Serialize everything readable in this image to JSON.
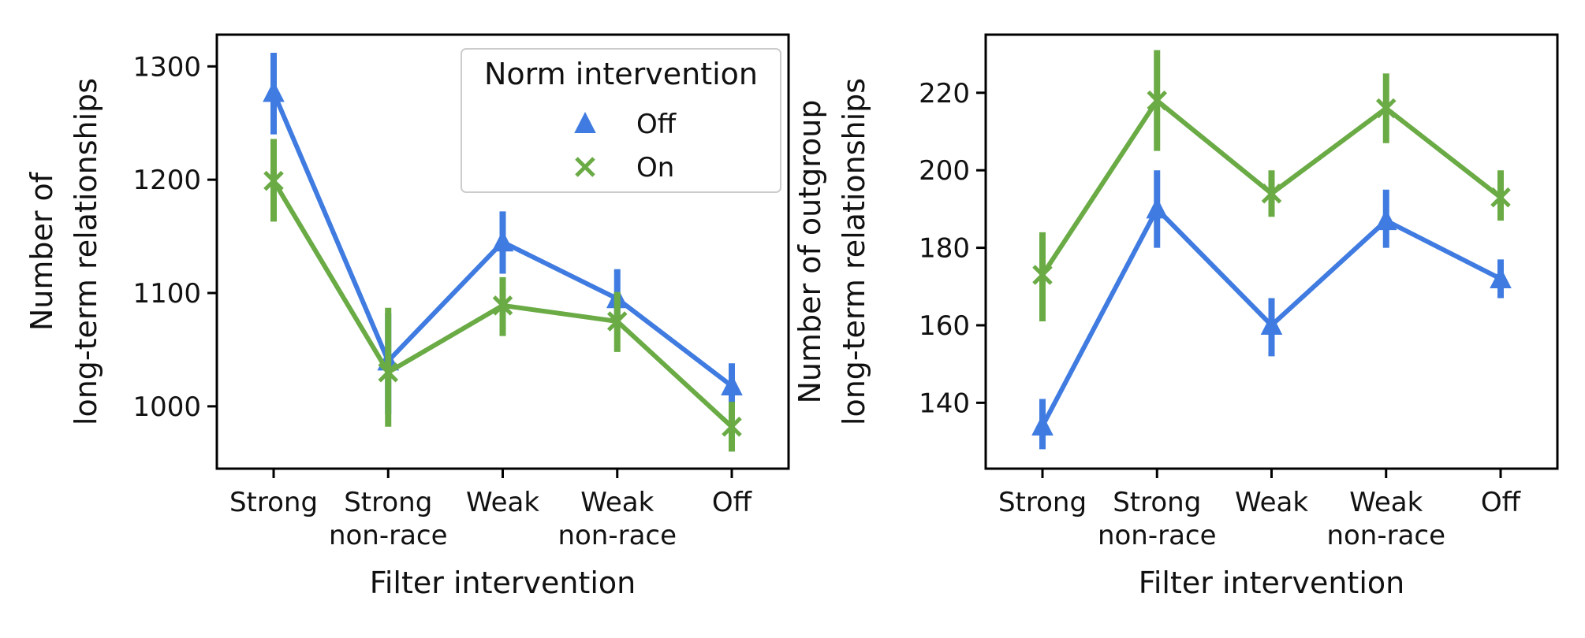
{
  "chart_data": [
    {
      "type": "line",
      "subtype": "point-plot-with-error-bars",
      "title": "",
      "xlabel": "Filter intervention",
      "ylabel_lines": [
        "Number of",
        "long-term relationships"
      ],
      "categories": [
        [
          "Strong"
        ],
        [
          "Strong",
          "non-race"
        ],
        [
          "Weak"
        ],
        [
          "Weak",
          "non-race"
        ],
        [
          "Off"
        ]
      ],
      "ylim": [
        945,
        1328
      ],
      "yticks": [
        1000,
        1100,
        1200,
        1300
      ],
      "legend": {
        "title": "Norm intervention",
        "location": "top-right",
        "entries": [
          {
            "name": "Off",
            "marker": "triangle"
          },
          {
            "name": "On",
            "marker": "x"
          }
        ]
      },
      "series": [
        {
          "name": "Off",
          "color": "#3f7be0",
          "marker": "triangle",
          "values": [
            1277,
            1040,
            1145,
            1095,
            1018
          ],
          "err_low": [
            1240,
            993,
            1117,
            1075,
            1000
          ],
          "err_high": [
            1312,
            1082,
            1172,
            1121,
            1038
          ]
        },
        {
          "name": "On",
          "color": "#6aab45",
          "marker": "x",
          "values": [
            1199,
            1030,
            1089,
            1075,
            982
          ],
          "err_low": [
            1163,
            982,
            1062,
            1048,
            960
          ],
          "err_high": [
            1236,
            1087,
            1114,
            1101,
            1004
          ]
        }
      ]
    },
    {
      "type": "line",
      "subtype": "point-plot-with-error-bars",
      "title": "",
      "xlabel": "Filter intervention",
      "ylabel_lines": [
        "Number of outgroup",
        "long-term relationships"
      ],
      "categories": [
        [
          "Strong"
        ],
        [
          "Strong",
          "non-race"
        ],
        [
          "Weak"
        ],
        [
          "Weak",
          "non-race"
        ],
        [
          "Off"
        ]
      ],
      "ylim": [
        123,
        235
      ],
      "yticks": [
        140,
        160,
        180,
        200,
        220
      ],
      "legend": null,
      "series": [
        {
          "name": "Off",
          "color": "#3f7be0",
          "marker": "triangle",
          "values": [
            134,
            190,
            160,
            187,
            172
          ],
          "err_low": [
            128,
            180,
            152,
            180,
            167
          ],
          "err_high": [
            141,
            200,
            167,
            195,
            177
          ]
        },
        {
          "name": "On",
          "color": "#6aab45",
          "marker": "x",
          "values": [
            173,
            218,
            194,
            216,
            193
          ],
          "err_low": [
            161,
            205,
            188,
            207,
            187
          ],
          "err_high": [
            184,
            231,
            200,
            225,
            200
          ]
        }
      ]
    }
  ]
}
